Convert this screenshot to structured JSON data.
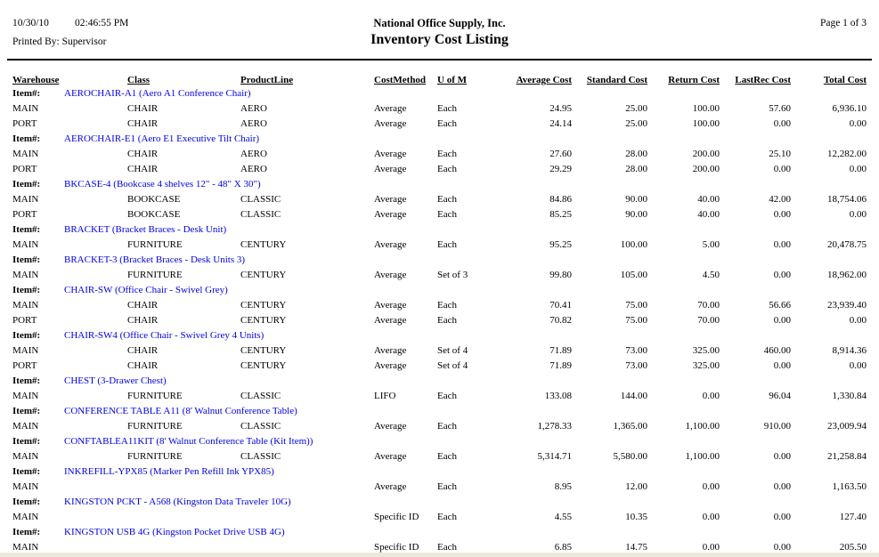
{
  "header": {
    "date": "10/30/10",
    "time": "02:46:55 PM",
    "printed_by": "Printed By: Supervisor",
    "company_name": "National Office Supply, Inc.",
    "report_title": "Inventory Cost Listing",
    "page_indicator": "Page 1 of 3"
  },
  "colors": {
    "item_text": "#0000EE",
    "page_background": "#FFFFFF",
    "divider": "#000000",
    "bottom_strip": "#ECE9D8"
  },
  "table": {
    "item_row_label": "Item#:",
    "columns": [
      {
        "label": "Warehouse",
        "align": "left"
      },
      {
        "label": "Class",
        "align": "left"
      },
      {
        "label": "ProductLine",
        "align": "left"
      },
      {
        "label": "CostMethod",
        "align": "left"
      },
      {
        "label": "U of M",
        "align": "left"
      },
      {
        "label": "Average Cost",
        "align": "right"
      },
      {
        "label": "Standard Cost",
        "align": "right"
      },
      {
        "label": "Return Cost",
        "align": "right"
      },
      {
        "label": "LastRec Cost",
        "align": "right"
      },
      {
        "label": "Total Cost",
        "align": "right"
      }
    ],
    "items": [
      {
        "code_description": "AEROCHAIR-A1 (Aero A1 Conference Chair)",
        "rows": [
          [
            "MAIN",
            "CHAIR",
            "AERO",
            "Average",
            "Each",
            "24.95",
            "25.00",
            "100.00",
            "57.60",
            "6,936.10"
          ],
          [
            "PORT",
            "CHAIR",
            "AERO",
            "Average",
            "Each",
            "24.14",
            "25.00",
            "100.00",
            "0.00",
            "0.00"
          ]
        ]
      },
      {
        "code_description": "AEROCHAIR-E1 (Aero E1 Executive Tilt Chair)",
        "rows": [
          [
            "MAIN",
            "CHAIR",
            "AERO",
            "Average",
            "Each",
            "27.60",
            "28.00",
            "200.00",
            "25.10",
            "12,282.00"
          ],
          [
            "PORT",
            "CHAIR",
            "AERO",
            "Average",
            "Each",
            "29.29",
            "28.00",
            "200.00",
            "0.00",
            "0.00"
          ]
        ]
      },
      {
        "code_description": "BKCASE-4 (Bookcase 4 shelves 12\" - 48\" X 30\")",
        "rows": [
          [
            "MAIN",
            "BOOKCASE",
            "CLASSIC",
            "Average",
            "Each",
            "84.86",
            "90.00",
            "40.00",
            "42.00",
            "18,754.06"
          ],
          [
            "PORT",
            "BOOKCASE",
            "CLASSIC",
            "Average",
            "Each",
            "85.25",
            "90.00",
            "40.00",
            "0.00",
            "0.00"
          ]
        ]
      },
      {
        "code_description": "BRACKET (Bracket Braces - Desk Unit)",
        "rows": [
          [
            "MAIN",
            "FURNITURE",
            "CENTURY",
            "Average",
            "Each",
            "95.25",
            "100.00",
            "5.00",
            "0.00",
            "20,478.75"
          ]
        ]
      },
      {
        "code_description": "BRACKET-3 (Bracket Braces - Desk Units 3)",
        "rows": [
          [
            "MAIN",
            "FURNITURE",
            "CENTURY",
            "Average",
            "Set of 3",
            "99.80",
            "105.00",
            "4.50",
            "0.00",
            "18,962.00"
          ]
        ]
      },
      {
        "code_description": "CHAIR-SW (Office Chair - Swivel Grey)",
        "rows": [
          [
            "MAIN",
            "CHAIR",
            "CENTURY",
            "Average",
            "Each",
            "70.41",
            "75.00",
            "70.00",
            "56.66",
            "23,939.40"
          ],
          [
            "PORT",
            "CHAIR",
            "CENTURY",
            "Average",
            "Each",
            "70.82",
            "75.00",
            "70.00",
            "0.00",
            "0.00"
          ]
        ]
      },
      {
        "code_description": "CHAIR-SW4 (Office Chair - Swivel Grey 4 Units)",
        "rows": [
          [
            "MAIN",
            "CHAIR",
            "CENTURY",
            "Average",
            "Set of 4",
            "71.89",
            "73.00",
            "325.00",
            "460.00",
            "8,914.36"
          ],
          [
            "PORT",
            "CHAIR",
            "CENTURY",
            "Average",
            "Set of 4",
            "71.89",
            "73.00",
            "325.00",
            "0.00",
            "0.00"
          ]
        ]
      },
      {
        "code_description": "CHEST (3-Drawer Chest)",
        "rows": [
          [
            "MAIN",
            "FURNITURE",
            "CLASSIC",
            "LIFO",
            "Each",
            "133.08",
            "144.00",
            "0.00",
            "96.04",
            "1,330.84"
          ]
        ]
      },
      {
        "code_description": "CONFERENCE TABLE A11 (8' Walnut Conference Table)",
        "rows": [
          [
            "MAIN",
            "FURNITURE",
            "CLASSIC",
            "Average",
            "Each",
            "1,278.33",
            "1,365.00",
            "1,100.00",
            "910.00",
            "23,009.94"
          ]
        ]
      },
      {
        "code_description": "CONFTABLEA11KIT (8' Walnut Conference Table (Kit Item))",
        "rows": [
          [
            "MAIN",
            "FURNITURE",
            "CLASSIC",
            "Average",
            "Each",
            "5,314.71",
            "5,580.00",
            "1,100.00",
            "0.00",
            "21,258.84"
          ]
        ]
      },
      {
        "code_description": "INKREFILL-YPX85 (Marker Pen Refill Ink YPX85)",
        "rows": [
          [
            "MAIN",
            "",
            "",
            "Average",
            "Each",
            "8.95",
            "12.00",
            "0.00",
            "0.00",
            "1,163.50"
          ]
        ]
      },
      {
        "code_description": "KINGSTON PCKT - A568 (Kingston Data Traveler 10G)",
        "rows": [
          [
            "MAIN",
            "",
            "",
            "Specific ID",
            "Each",
            "4.55",
            "10.35",
            "0.00",
            "0.00",
            "127.40"
          ]
        ]
      },
      {
        "code_description": "KINGSTON USB 4G (Kingston Pocket Drive USB 4G)",
        "rows": [
          [
            "MAIN",
            "",
            "",
            "Specific ID",
            "Each",
            "6.85",
            "14.75",
            "0.00",
            "0.00",
            "205.50"
          ]
        ]
      }
    ]
  }
}
